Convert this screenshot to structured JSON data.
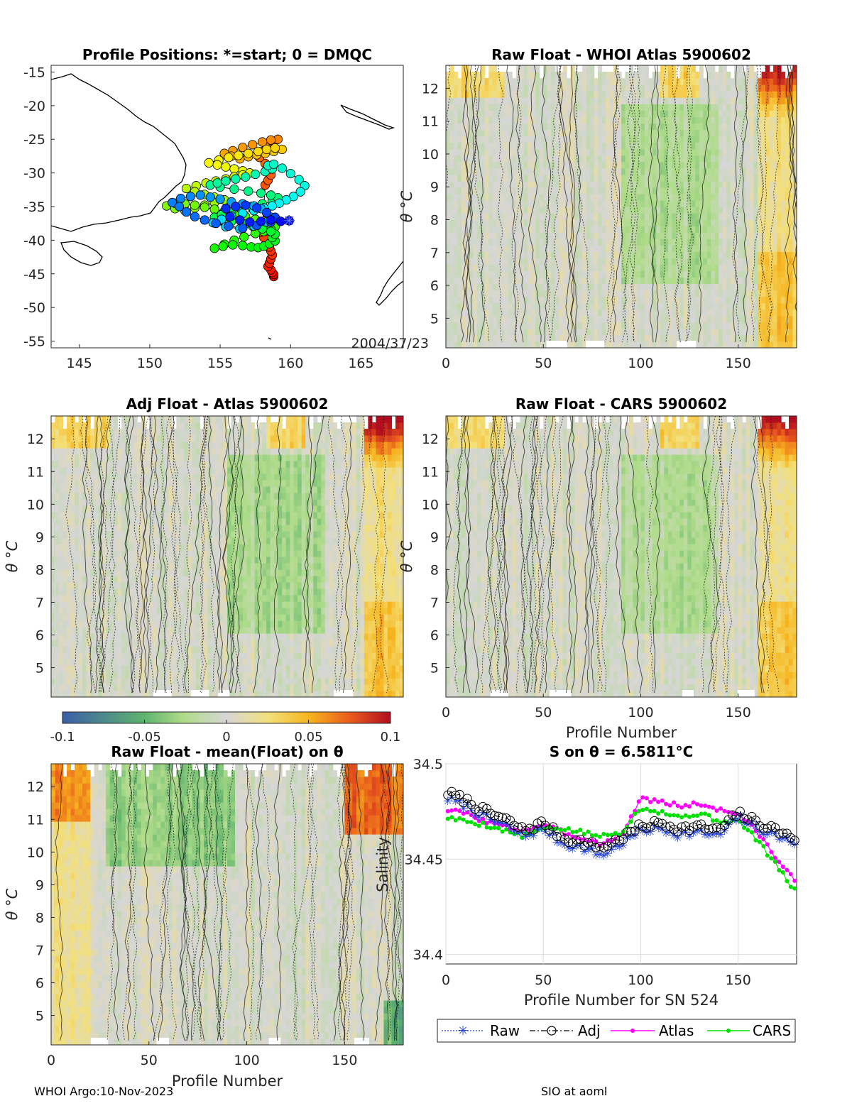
{
  "footer": {
    "left": "WHOI Argo:10-Nov-2023",
    "right": "SIO at aoml"
  },
  "colorbar": {
    "ticks": [
      "-0.1",
      "-0.05",
      "0",
      "0.05",
      "0.1"
    ]
  },
  "chart_data": [
    {
      "id": "map",
      "type": "scatter",
      "title": "Profile Positions: *=start; 0 = DMQC",
      "annotation": "2004/37/23",
      "xlim": [
        143,
        168
      ],
      "ylim": [
        -56,
        -14
      ],
      "xticks": [
        "145",
        "150",
        "155",
        "160",
        "165"
      ],
      "yticks": [
        "-15",
        "-20",
        "-25",
        "-30",
        "-35",
        "-40",
        "-45",
        "-50",
        "-55"
      ],
      "start": [
        159.9,
        -37.1
      ],
      "track_lon": [
        159.9,
        159.3,
        158.6,
        157.9,
        157.1,
        156.4,
        155.7,
        155.4,
        156.1,
        156.8,
        157.6,
        158.3,
        158.9,
        158.6,
        157.6,
        156.6,
        155.6,
        154.7,
        153.9,
        153.2,
        152.6,
        152.1,
        151.6,
        152.2,
        152.9,
        153.6,
        154.3,
        155.0,
        155.8,
        156.6,
        157.4,
        157.9,
        158.3,
        158.6,
        158.3,
        157.4,
        156.4,
        155.4,
        154.5,
        155.1,
        155.8,
        156.6,
        157.4,
        158.1,
        158.7,
        159.2,
        159.7,
        160.2,
        160.7,
        161.0,
        160.6,
        160.0,
        159.4,
        158.8,
        158.4,
        158.7,
        158.2,
        157.5,
        156.8,
        156.1,
        155.4,
        154.8,
        154.3,
        155.0,
        156.0,
        157.0,
        157.9,
        158.6,
        159.1,
        158.7,
        158.0,
        157.2,
        156.5,
        155.8,
        155.1,
        154.6,
        155.1,
        155.8,
        156.6,
        157.3,
        158.0,
        158.6,
        158.9,
        158.7,
        158.9,
        158.5,
        158.1,
        157.7,
        157.2,
        156.6,
        155.9,
        155.2,
        154.6,
        155.3,
        156.0,
        156.7,
        157.5,
        158.1,
        158.6,
        158.9,
        158.6,
        158.1,
        157.5,
        156.8,
        156.1,
        155.3,
        154.6,
        153.9,
        153.2,
        152.5,
        151.8,
        151.2,
        151.8,
        152.5,
        153.2,
        153.9,
        154.6,
        155.3,
        154.6,
        153.9,
        153.2,
        152.6,
        153.3,
        154.0,
        154.7,
        155.4,
        156.0,
        156.6,
        157.1,
        156.6,
        156.0,
        155.4,
        154.8,
        154.2,
        154.9,
        155.6,
        156.3,
        157.0,
        157.7,
        158.3,
        158.9,
        159.4,
        158.8,
        158.2,
        157.6,
        157.0,
        156.4,
        155.8,
        155.3,
        155.9,
        156.6,
        157.3,
        158.0,
        158.6,
        159.1,
        158.7,
        158.3,
        158.0,
        157.8,
        158.2,
        158.5,
        158.6,
        158.4,
        158.2,
        158.0,
        157.9,
        158.1,
        158.3,
        158.5,
        158.6,
        158.7,
        158.6,
        158.5,
        158.4,
        158.6,
        158.7,
        158.8,
        158.8
      ],
      "track_lat": [
        -37.1,
        -37.2,
        -37.0,
        -37.2,
        -37.3,
        -37.0,
        -36.5,
        -35.3,
        -35.0,
        -34.8,
        -35.2,
        -35.9,
        -36.6,
        -37.3,
        -37.8,
        -38.2,
        -37.9,
        -37.5,
        -37.0,
        -36.5,
        -35.8,
        -35.0,
        -34.4,
        -33.8,
        -33.5,
        -33.3,
        -33.6,
        -33.9,
        -34.3,
        -34.6,
        -34.9,
        -35.3,
        -35.9,
        -36.6,
        -37.3,
        -37.9,
        -38.3,
        -38.0,
        -37.4,
        -36.9,
        -36.4,
        -36.0,
        -35.6,
        -35.2,
        -34.9,
        -34.5,
        -34.0,
        -33.5,
        -32.8,
        -31.9,
        -31.0,
        -30.1,
        -29.3,
        -28.7,
        -28.9,
        -29.4,
        -29.8,
        -30.2,
        -30.6,
        -30.9,
        -31.2,
        -31.5,
        -31.8,
        -32.1,
        -32.4,
        -32.7,
        -33.0,
        -33.3,
        -33.7,
        -34.2,
        -34.6,
        -35.0,
        -35.4,
        -35.8,
        -36.2,
        -36.6,
        -36.9,
        -37.2,
        -37.5,
        -37.9,
        -38.3,
        -38.7,
        -39.1,
        -39.6,
        -40.1,
        -40.5,
        -40.9,
        -41.1,
        -41.0,
        -40.8,
        -40.7,
        -40.9,
        -41.2,
        -40.6,
        -40.0,
        -39.5,
        -39.0,
        -38.7,
        -38.4,
        -38.0,
        -37.6,
        -37.2,
        -36.9,
        -36.5,
        -36.1,
        -35.7,
        -35.4,
        -35.1,
        -34.8,
        -34.6,
        -34.5,
        -34.9,
        -35.3,
        -35.6,
        -35.2,
        -34.8,
        -34.4,
        -34.0,
        -33.6,
        -33.2,
        -32.8,
        -32.3,
        -31.9,
        -31.5,
        -31.2,
        -30.9,
        -30.6,
        -30.3,
        -30.0,
        -29.7,
        -29.4,
        -29.1,
        -28.8,
        -28.5,
        -28.1,
        -27.7,
        -27.4,
        -27.1,
        -26.8,
        -26.5,
        -26.3,
        -26.5,
        -26.8,
        -27.1,
        -27.3,
        -27.6,
        -27.9,
        -27.5,
        -27.1,
        -26.7,
        -26.2,
        -25.8,
        -25.4,
        -25.1,
        -25.0,
        -25.3,
        -25.9,
        -26.8,
        -27.7,
        -28.6,
        -29.4,
        -30.3,
        -31.1,
        -31.8,
        -37.9,
        -38.8,
        -39.6,
        -40.3,
        -41.0,
        -41.6,
        -42.2,
        -42.8,
        -43.4,
        -43.9,
        -44.4,
        -44.8,
        -45.1,
        -45.4
      ]
    },
    {
      "id": "raw-atlas",
      "type": "heatmap",
      "title": "Raw Float - WHOI Atlas  5900602",
      "xlabel": "",
      "ylabel": "θ °C",
      "xlim": [
        0,
        180
      ],
      "ylim": [
        4.1,
        12.7
      ],
      "xticks": [
        "0",
        "50",
        "100",
        "150"
      ],
      "yticks": [
        "5",
        "6",
        "7",
        "8",
        "9",
        "10",
        "11",
        "12"
      ]
    },
    {
      "id": "adj-atlas",
      "type": "heatmap",
      "title": "Adj Float - Atlas  5900602",
      "xlabel": "",
      "ylabel": "θ °C",
      "xlim": [
        0,
        180
      ],
      "ylim": [
        4.1,
        12.7
      ],
      "xticks": [],
      "yticks": [
        "5",
        "6",
        "7",
        "8",
        "9",
        "10",
        "11",
        "12"
      ]
    },
    {
      "id": "raw-cars",
      "type": "heatmap",
      "title": "Raw Float - CARS  5900602",
      "xlabel": "Profile Number",
      "ylabel": "θ °C",
      "xlim": [
        0,
        180
      ],
      "ylim": [
        4.1,
        12.7
      ],
      "xticks": [
        "0",
        "50",
        "100",
        "150"
      ],
      "yticks": [
        "5",
        "6",
        "7",
        "8",
        "9",
        "10",
        "11",
        "12"
      ]
    },
    {
      "id": "raw-mean",
      "type": "heatmap",
      "title": "Raw Float - mean(Float) on θ",
      "xlabel": "Profile Number",
      "ylabel": "θ °C",
      "xlim": [
        0,
        180
      ],
      "ylim": [
        4.1,
        12.7
      ],
      "xticks": [
        "0",
        "50",
        "100",
        "150"
      ],
      "yticks": [
        "5",
        "6",
        "7",
        "8",
        "9",
        "10",
        "11",
        "12"
      ]
    },
    {
      "id": "salinity",
      "type": "line",
      "title": "S on θ = 6.5811°C",
      "xlabel": "Profile Number for SN 524",
      "ylabel": "Salinity",
      "xlim": [
        0,
        180
      ],
      "ylim": [
        34.395,
        34.5
      ],
      "xticks": [
        "0",
        "50",
        "100",
        "150"
      ],
      "yticks": [
        "34.4",
        "34.45",
        "34.5"
      ],
      "legend": [
        "Raw",
        "Adj",
        "Atlas",
        "CARS"
      ],
      "anchors_x": [
        0,
        10,
        20,
        30,
        40,
        50,
        60,
        70,
        80,
        90,
        100,
        110,
        120,
        130,
        140,
        150,
        160,
        170,
        180
      ],
      "raw": [
        34.482,
        34.478,
        34.472,
        34.468,
        34.462,
        34.466,
        34.458,
        34.456,
        34.452,
        34.458,
        34.465,
        34.466,
        34.463,
        34.464,
        34.462,
        34.472,
        34.466,
        34.462,
        34.458
      ],
      "adj": [
        34.484,
        34.48,
        34.474,
        34.47,
        34.464,
        34.468,
        34.46,
        34.458,
        34.455,
        34.46,
        34.466,
        34.468,
        34.465,
        34.466,
        34.464,
        34.473,
        34.468,
        34.464,
        34.459
      ],
      "atlas": [
        34.476,
        34.474,
        34.47,
        34.467,
        34.465,
        34.468,
        34.464,
        34.461,
        34.458,
        34.462,
        34.482,
        34.48,
        34.478,
        34.479,
        34.476,
        34.474,
        34.464,
        34.45,
        34.437
      ],
      "cars": [
        34.472,
        34.47,
        34.468,
        34.465,
        34.462,
        34.466,
        34.466,
        34.464,
        34.462,
        34.464,
        34.477,
        34.475,
        34.472,
        34.474,
        34.47,
        34.47,
        34.46,
        34.446,
        34.432
      ]
    }
  ]
}
